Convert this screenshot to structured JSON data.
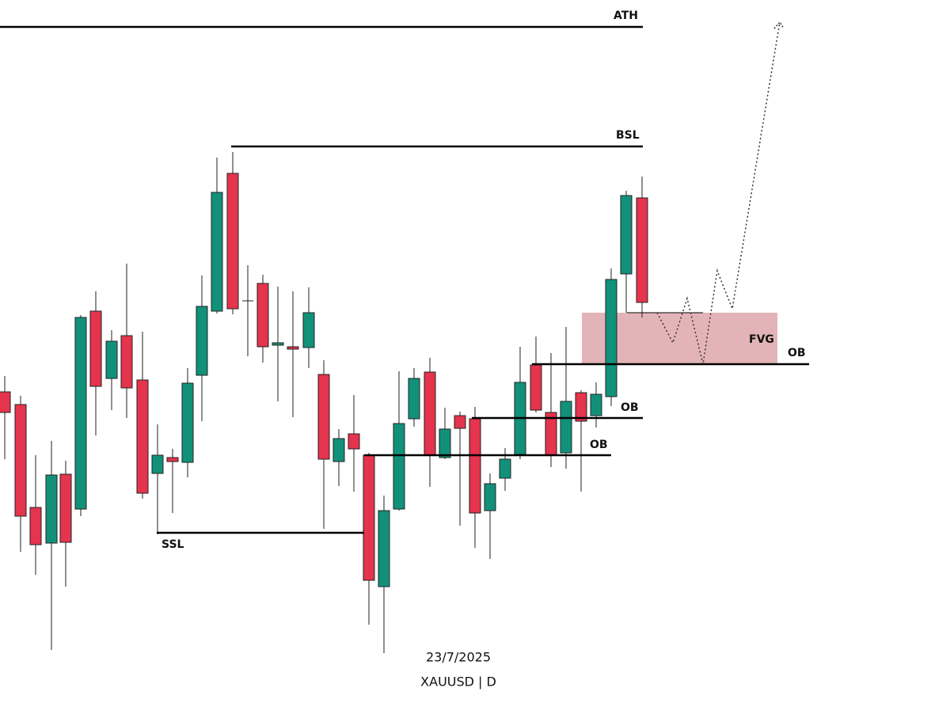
{
  "levels": {
    "ath": "ATH",
    "bsl": "BSL",
    "ssl": "SSL",
    "ob_top": "OB",
    "ob_mid": "OB",
    "ob_low": "OB",
    "fvg": "FVG"
  },
  "footer": {
    "date": "23/7/2025",
    "symbol": "XAUUSD | D"
  }
}
